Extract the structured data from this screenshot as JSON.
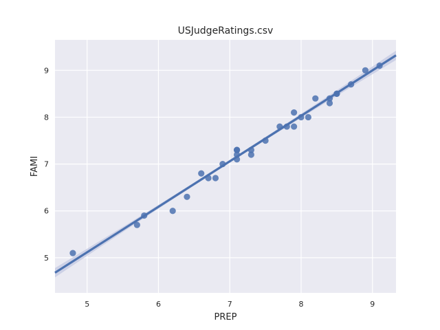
{
  "chart_data": {
    "type": "scatter",
    "title": "USJudgeRatings.csv",
    "xlabel": "PREP",
    "ylabel": "FAMI",
    "xlim": [
      4.55,
      9.33
    ],
    "ylim": [
      4.25,
      9.65
    ],
    "xticks": [
      "5",
      "6",
      "7",
      "8",
      "9"
    ],
    "yticks": [
      "5",
      "6",
      "7",
      "8",
      "9"
    ],
    "grid": true,
    "legend": "none",
    "colors": {
      "background": "#eaeaf2",
      "grid": "#ffffff",
      "point": "#4c72b0",
      "line": "#4c72b0",
      "band": "#c8cde4"
    },
    "series": [
      {
        "points": [
          [
            4.8,
            5.1
          ],
          [
            5.7,
            5.7
          ],
          [
            5.8,
            5.9
          ],
          [
            6.2,
            6.0
          ],
          [
            6.4,
            6.3
          ],
          [
            6.6,
            6.8
          ],
          [
            6.7,
            6.7
          ],
          [
            6.8,
            6.7
          ],
          [
            6.9,
            7.0
          ],
          [
            7.1,
            7.3
          ],
          [
            7.1,
            7.3
          ],
          [
            7.1,
            7.2
          ],
          [
            7.1,
            7.1
          ],
          [
            7.3,
            7.2
          ],
          [
            7.3,
            7.3
          ],
          [
            7.5,
            7.5
          ],
          [
            7.7,
            7.8
          ],
          [
            7.8,
            7.8
          ],
          [
            7.9,
            8.1
          ],
          [
            7.9,
            7.8
          ],
          [
            8.0,
            8.0
          ],
          [
            8.1,
            8.0
          ],
          [
            8.2,
            8.4
          ],
          [
            8.4,
            8.4
          ],
          [
            8.4,
            8.3
          ],
          [
            8.5,
            8.5
          ],
          [
            8.5,
            8.5
          ],
          [
            8.7,
            8.7
          ],
          [
            8.9,
            9.0
          ],
          [
            9.1,
            9.1
          ]
        ]
      }
    ],
    "regression": {
      "x": [
        4.55,
        9.33
      ],
      "y": [
        4.68,
        9.32
      ],
      "ci_halfwidth_ends": 0.1,
      "ci_halfwidth_center": 0.03
    }
  }
}
